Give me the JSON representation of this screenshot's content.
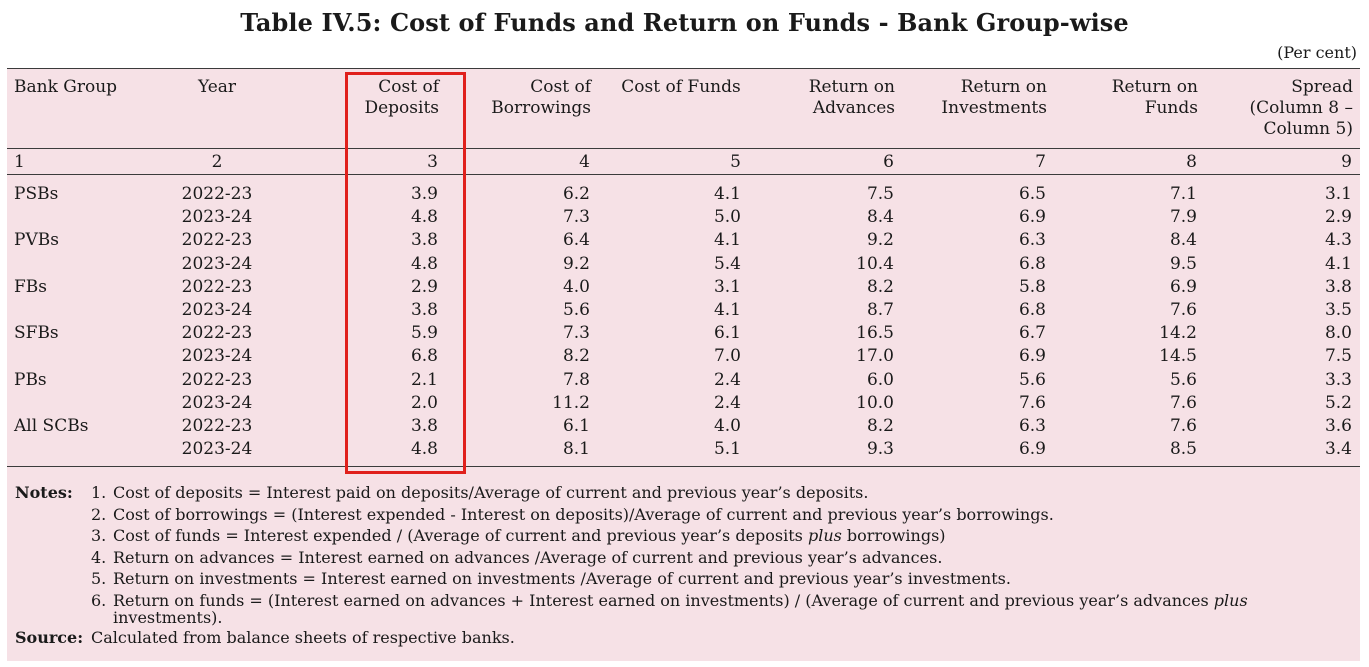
{
  "title": "Table IV.5: Cost of Funds and Return on Funds - Bank Group-wise",
  "unit": "(Per cent)",
  "headers": [
    {
      "lines": [
        "Bank Group"
      ]
    },
    {
      "lines": [
        "Year"
      ]
    },
    {
      "lines": [
        "Cost of",
        "Deposits"
      ]
    },
    {
      "lines": [
        "Cost of",
        "Borrowings"
      ]
    },
    {
      "lines": [
        "Cost of Funds"
      ]
    },
    {
      "lines": [
        "Return on",
        "Advances"
      ]
    },
    {
      "lines": [
        "Return on",
        "Investments"
      ]
    },
    {
      "lines": [
        "Return on",
        "Funds"
      ]
    },
    {
      "lines": [
        "Spread",
        "(Column 8 –",
        "Column 5)"
      ]
    }
  ],
  "column_numbers": [
    "1",
    "2",
    "3",
    "4",
    "5",
    "6",
    "7",
    "8",
    "9"
  ],
  "rows": [
    {
      "group": "PSBs",
      "year": "2022-23",
      "values": [
        "3.9",
        "6.2",
        "4.1",
        "7.5",
        "6.5",
        "7.1",
        "3.1"
      ]
    },
    {
      "group": "",
      "year": "2023-24",
      "values": [
        "4.8",
        "7.3",
        "5.0",
        "8.4",
        "6.9",
        "7.9",
        "2.9"
      ]
    },
    {
      "group": "PVBs",
      "year": "2022-23",
      "values": [
        "3.8",
        "6.4",
        "4.1",
        "9.2",
        "6.3",
        "8.4",
        "4.3"
      ]
    },
    {
      "group": "",
      "year": "2023-24",
      "values": [
        "4.8",
        "9.2",
        "5.4",
        "10.4",
        "6.8",
        "9.5",
        "4.1"
      ]
    },
    {
      "group": "FBs",
      "year": "2022-23",
      "values": [
        "2.9",
        "4.0",
        "3.1",
        "8.2",
        "5.8",
        "6.9",
        "3.8"
      ]
    },
    {
      "group": "",
      "year": "2023-24",
      "values": [
        "3.8",
        "5.6",
        "4.1",
        "8.7",
        "6.8",
        "7.6",
        "3.5"
      ]
    },
    {
      "group": "SFBs",
      "year": "2022-23",
      "values": [
        "5.9",
        "7.3",
        "6.1",
        "16.5",
        "6.7",
        "14.2",
        "8.0"
      ]
    },
    {
      "group": "",
      "year": "2023-24",
      "values": [
        "6.8",
        "8.2",
        "7.0",
        "17.0",
        "6.9",
        "14.5",
        "7.5"
      ]
    },
    {
      "group": "PBs",
      "year": "2022-23",
      "values": [
        "2.1",
        "7.8",
        "2.4",
        "6.0",
        "5.6",
        "5.6",
        "3.3"
      ]
    },
    {
      "group": "",
      "year": "2023-24",
      "values": [
        "2.0",
        "11.2",
        "2.4",
        "10.0",
        "7.6",
        "7.6",
        "5.2"
      ]
    },
    {
      "group": "All SCBs",
      "year": "2022-23",
      "values": [
        "3.8",
        "6.1",
        "4.0",
        "8.2",
        "6.3",
        "7.6",
        "3.6"
      ]
    },
    {
      "group": "",
      "year": "2023-24",
      "values": [
        "4.8",
        "8.1",
        "5.1",
        "9.3",
        "6.9",
        "8.5",
        "3.4"
      ]
    }
  ],
  "notes": {
    "label": "Notes:",
    "items": [
      {
        "num": "1.",
        "parts": [
          {
            "t": "Cost of deposits = Interest paid on deposits/Average of current and previous year’s deposits."
          }
        ]
      },
      {
        "num": "2.",
        "parts": [
          {
            "t": "Cost of borrowings = (Interest expended - Interest on deposits)/Average of current and previous year’s borrowings."
          }
        ]
      },
      {
        "num": "3.",
        "parts": [
          {
            "t": "Cost of funds = Interest expended / (Average of current and previous year’s deposits "
          },
          {
            "t": "plus",
            "i": true
          },
          {
            "t": " borrowings)"
          }
        ]
      },
      {
        "num": "4.",
        "parts": [
          {
            "t": "Return on advances = Interest earned on advances /Average of current and previous year’s advances."
          }
        ]
      },
      {
        "num": "5.",
        "parts": [
          {
            "t": "Return on investments = Interest earned on investments /Average of current and previous year’s investments."
          }
        ]
      },
      {
        "num": "6.",
        "parts": [
          {
            "t": "Return on funds = (Interest earned on advances + Interest earned on investments) / (Average of current and previous year’s advances "
          },
          {
            "t": "plus",
            "i": true
          }
        ],
        "cont": "investments)."
      }
    ]
  },
  "source": {
    "label": "Source:",
    "text": "Calculated from balance sheets of respective banks."
  },
  "colors": {
    "background": "#f6e1e6",
    "rule": "#3b3b3b",
    "highlight": "#e0201c"
  }
}
